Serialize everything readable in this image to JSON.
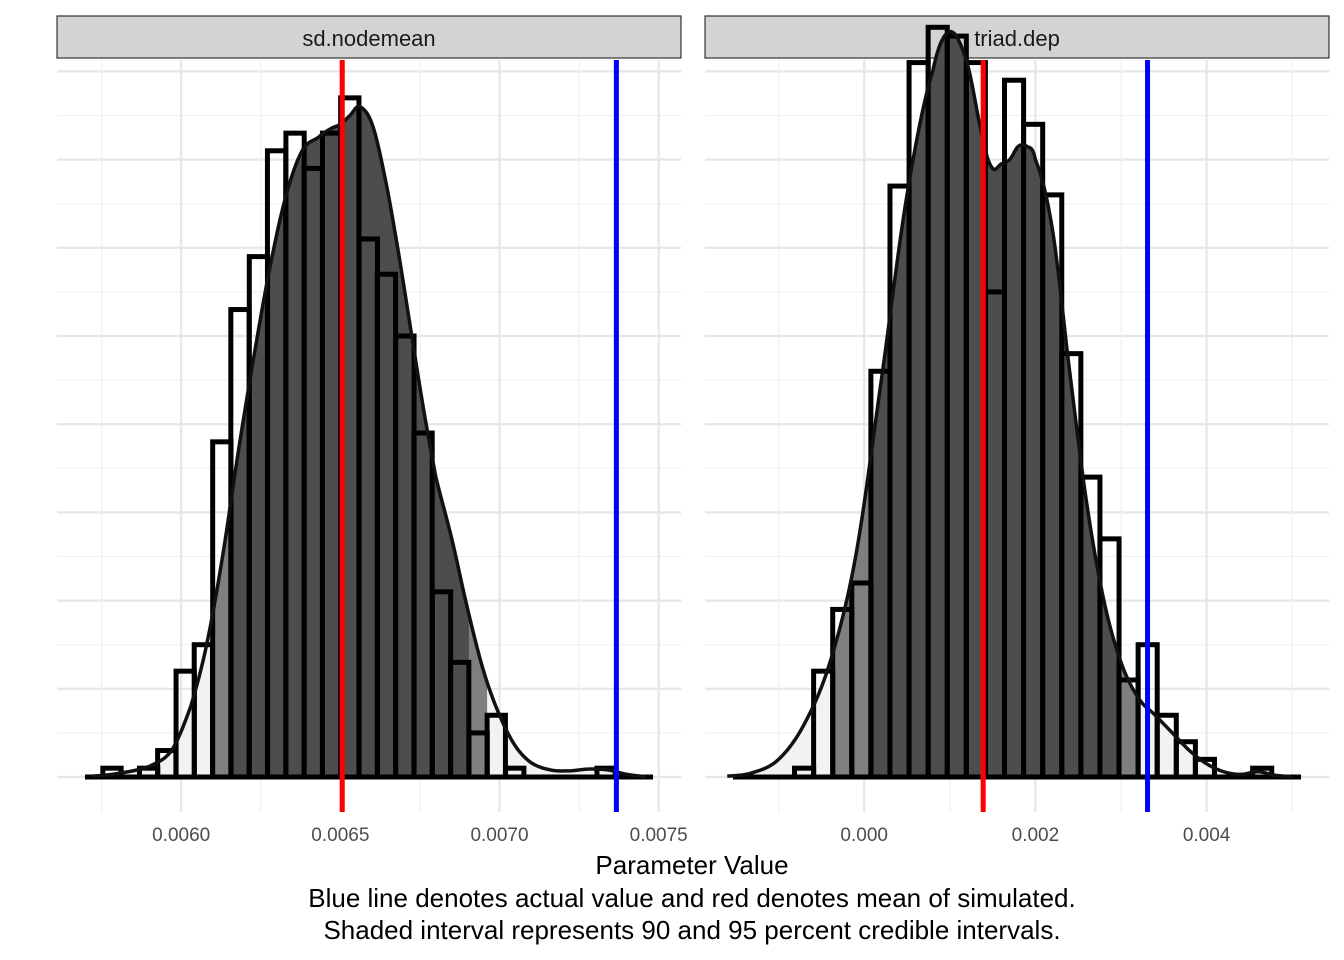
{
  "chart_data": [
    {
      "type": "histogram-density",
      "facet": "sd.nodemean",
      "xlim": [
        0.00561,
        0.00757
      ],
      "x_ticks": [
        0.006,
        0.0065,
        0.007,
        0.0075
      ],
      "x_tick_labels": [
        "0.0060",
        "0.0065",
        "0.0070",
        "0.0075"
      ],
      "bin_width": 5.75e-05,
      "bins": [
        {
          "left": 0.005754,
          "count": 1
        },
        {
          "left": 0.005811,
          "count": 0
        },
        {
          "left": 0.005869,
          "count": 1
        },
        {
          "left": 0.005926,
          "count": 3
        },
        {
          "left": 0.005984,
          "count": 12
        },
        {
          "left": 0.006041,
          "count": 15
        },
        {
          "left": 0.006099,
          "count": 38
        },
        {
          "left": 0.006156,
          "count": 53
        },
        {
          "left": 0.006214,
          "count": 59
        },
        {
          "left": 0.006271,
          "count": 71
        },
        {
          "left": 0.006329,
          "count": 73
        },
        {
          "left": 0.006386,
          "count": 69
        },
        {
          "left": 0.006444,
          "count": 73
        },
        {
          "left": 0.006501,
          "count": 77
        },
        {
          "left": 0.006559,
          "count": 61
        },
        {
          "left": 0.006616,
          "count": 57
        },
        {
          "left": 0.006674,
          "count": 50
        },
        {
          "left": 0.006731,
          "count": 39
        },
        {
          "left": 0.006789,
          "count": 21
        },
        {
          "left": 0.006846,
          "count": 13
        },
        {
          "left": 0.006904,
          "count": 5
        },
        {
          "left": 0.006961,
          "count": 7
        },
        {
          "left": 0.007019,
          "count": 1
        },
        {
          "left": 0.007076,
          "count": 0
        },
        {
          "left": 0.007134,
          "count": 0
        },
        {
          "left": 0.007191,
          "count": 0
        },
        {
          "left": 0.007249,
          "count": 0
        },
        {
          "left": 0.007306,
          "count": 1
        },
        {
          "left": 0.007364,
          "count": 0
        }
      ],
      "density": {
        "x": [
          0.00572,
          0.0058,
          0.0059,
          0.00597,
          0.00603,
          0.00608,
          0.00613,
          0.00618,
          0.00623,
          0.00628,
          0.00633,
          0.00638,
          0.00643,
          0.00647,
          0.0065,
          0.00653,
          0.00656,
          0.0066,
          0.00664,
          0.00668,
          0.00672,
          0.00676,
          0.0068,
          0.00685,
          0.0069,
          0.00695,
          0.007,
          0.00705,
          0.0071,
          0.00716,
          0.00722,
          0.00728,
          0.00734,
          0.0074,
          0.00746
        ],
        "y": [
          0.1,
          0.4,
          1.2,
          3,
          8,
          15,
          25,
          37,
          48,
          58,
          66,
          71,
          72.5,
          73.5,
          74,
          75,
          76,
          74,
          68,
          60,
          51,
          42,
          34,
          27,
          19,
          12,
          7,
          3.5,
          1.6,
          0.8,
          0.7,
          0.9,
          0.8,
          0.3,
          0.05
        ]
      },
      "interval_90": [
        0.006156,
        0.006904
      ],
      "interval_95": [
        0.006099,
        0.006961
      ],
      "actual_value": 0.007367,
      "simulated_mean": 0.006506
    },
    {
      "type": "histogram-density",
      "facet": "triad.dep",
      "xlim": [
        -0.00186,
        0.00543
      ],
      "x_ticks": [
        0,
        0.002,
        0.004
      ],
      "x_tick_labels": [
        "0.000",
        "0.002",
        "0.004"
      ],
      "bin_width": 0.000223,
      "bins": [
        {
          "left": -0.001037,
          "count": 0
        },
        {
          "left": -0.000814,
          "count": 1
        },
        {
          "left": -0.000591,
          "count": 12
        },
        {
          "left": -0.000368,
          "count": 19
        },
        {
          "left": -0.000145,
          "count": 22
        },
        {
          "left": 7.8e-05,
          "count": 46
        },
        {
          "left": 0.000301,
          "count": 67
        },
        {
          "left": 0.000524,
          "count": 81
        },
        {
          "left": 0.000747,
          "count": 85
        },
        {
          "left": 0.00097,
          "count": 84
        },
        {
          "left": 0.001193,
          "count": 81
        },
        {
          "left": 0.001416,
          "count": 55
        },
        {
          "left": 0.001639,
          "count": 79
        },
        {
          "left": 0.001862,
          "count": 74
        },
        {
          "left": 0.002085,
          "count": 66
        },
        {
          "left": 0.002308,
          "count": 48
        },
        {
          "left": 0.002531,
          "count": 34
        },
        {
          "left": 0.002754,
          "count": 27
        },
        {
          "left": 0.002977,
          "count": 11
        },
        {
          "left": 0.0032,
          "count": 15
        },
        {
          "left": 0.003423,
          "count": 7
        },
        {
          "left": 0.003646,
          "count": 4
        },
        {
          "left": 0.003869,
          "count": 2
        },
        {
          "left": 0.004092,
          "count": 0
        },
        {
          "left": 0.004315,
          "count": 0
        },
        {
          "left": 0.004538,
          "count": 1
        },
        {
          "left": 0.004761,
          "count": 0
        }
      ],
      "density": {
        "x": [
          -0.0016,
          -0.0013,
          -0.001,
          -0.0007,
          -0.0004,
          -0.0001,
          0.0002,
          0.0005,
          0.0008,
          0.001,
          0.0012,
          0.0014,
          0.0015,
          0.0016,
          0.0017,
          0.0018,
          0.0019,
          0.002,
          0.0022,
          0.0024,
          0.0026,
          0.0028,
          0.003,
          0.0032,
          0.0034,
          0.0036,
          0.0038,
          0.004,
          0.0042,
          0.0044,
          0.0046,
          0.0048,
          0.005
        ],
        "y": [
          0.1,
          0.5,
          2,
          6,
          13,
          25,
          45,
          66,
          80,
          84.5,
          81,
          72,
          69,
          69.5,
          70,
          71.5,
          71.5,
          70,
          62,
          46,
          31,
          20,
          13,
          9,
          7,
          5,
          3,
          1.5,
          0.6,
          0.3,
          0.6,
          0.2,
          0.05
        ]
      },
      "interval_90": [
        7.8e-05,
        0.002977
      ],
      "interval_95": [
        -0.000368,
        0.0032
      ],
      "actual_value": 0.00331,
      "simulated_mean": 0.00139
    }
  ],
  "xlabel": "Parameter Value",
  "caption_line1": "Blue line denotes actual value and red denotes mean of simulated.",
  "caption_line2": "Shaded interval represents 90 and 95 percent credible intervals.",
  "colors": {
    "actual_line": "#0000ff",
    "mean_line": "#ff0000",
    "shade_90": "#4d4d4d",
    "shade_95": "#7f7f7f",
    "shade_outer": "#f2f2f2",
    "strip_fill": "#d3d3d3"
  }
}
